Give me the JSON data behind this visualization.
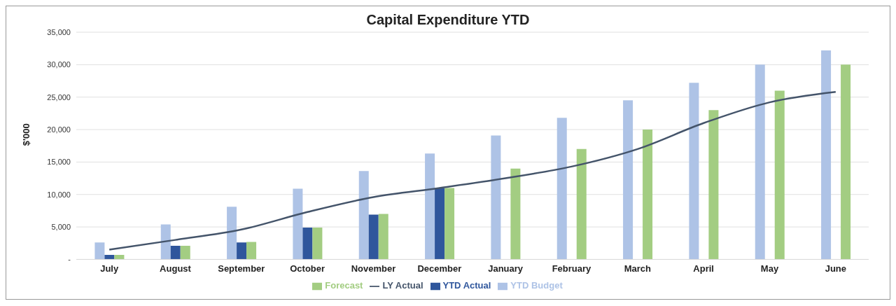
{
  "chart_data": {
    "type": "bar",
    "title": "Capital Expenditure YTD",
    "ylabel": "$'000",
    "categories": [
      "July",
      "August",
      "September",
      "October",
      "November",
      "December",
      "January",
      "February",
      "March",
      "April",
      "May",
      "June"
    ],
    "series": [
      {
        "name": "YTD Budget",
        "color": "#aec3e6",
        "values": [
          2600,
          5400,
          8100,
          10900,
          13600,
          16300,
          19100,
          21800,
          24500,
          27200,
          30000,
          32200
        ]
      },
      {
        "name": "YTD Actual",
        "color": "#2f569c",
        "values": [
          700,
          2100,
          2600,
          4900,
          6900,
          11000,
          null,
          null,
          null,
          null,
          null,
          null
        ]
      },
      {
        "name": "Forecast",
        "color": "#a3cd82",
        "values": [
          700,
          2100,
          2700,
          4900,
          7000,
          11000,
          14000,
          17000,
          20000,
          23000,
          26000,
          30000
        ]
      },
      {
        "name": "LY Actual",
        "type": "line",
        "color": "#44546a",
        "values": [
          1500,
          3000,
          4600,
          7300,
          9600,
          11000,
          12500,
          14300,
          17000,
          21000,
          24200,
          25800
        ]
      }
    ],
    "ylim": [
      0,
      35000
    ],
    "yticks": [
      {
        "value": 0,
        "label": "-"
      },
      {
        "value": 5000,
        "label": "5,000"
      },
      {
        "value": 10000,
        "label": "10,000"
      },
      {
        "value": 15000,
        "label": "15,000"
      },
      {
        "value": 20000,
        "label": "20,000"
      },
      {
        "value": 25000,
        "label": "25,000"
      },
      {
        "value": 30000,
        "label": "30,000"
      },
      {
        "value": 35000,
        "label": "35,000"
      }
    ],
    "grid": "y",
    "legend": "bottom",
    "marker": "none",
    "line_style": "solid"
  }
}
